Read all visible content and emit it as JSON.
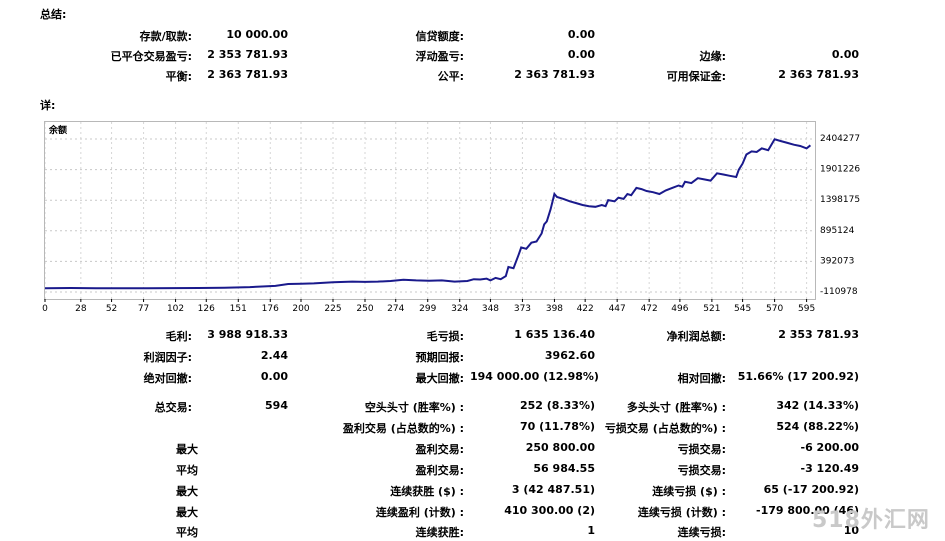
{
  "summary": {
    "title": "总结:",
    "deposit_label": "存款/取款:",
    "deposit_value": "10 000.00",
    "credit_label": "信贷额度:",
    "credit_value": "0.00",
    "closed_pl_label": "已平仓交易盈亏:",
    "closed_pl_value": "2 353 781.93",
    "floating_pl_label": "浮动盈亏:",
    "floating_pl_value": "0.00",
    "margin_label": "边缘:",
    "margin_value": "0.00",
    "balance_label": "平衡:",
    "balance_value": "2 363 781.93",
    "equity_label": "公平:",
    "equity_value": "2 363 781.93",
    "free_margin_label": "可用保证金:",
    "free_margin_value": "2 363 781.93"
  },
  "details": {
    "title": "详:"
  },
  "chart_data": {
    "type": "line",
    "legend": "余额",
    "x_ticks": [
      "0",
      "28",
      "52",
      "77",
      "102",
      "126",
      "151",
      "176",
      "200",
      "225",
      "250",
      "274",
      "299",
      "324",
      "348",
      "373",
      "398",
      "422",
      "447",
      "472",
      "496",
      "521",
      "545",
      "570",
      "595"
    ],
    "y_ticks": [
      "2404277",
      "1901226",
      "1398175",
      "895124",
      "392073",
      "-110978"
    ],
    "ylim": [
      -110978,
      2404277
    ],
    "xlim": [
      0,
      600
    ],
    "grid": true,
    "line_color": "#1a1a8c",
    "series": [
      {
        "x": [
          0,
          20,
          40,
          60,
          80,
          100,
          120,
          140,
          160,
          180,
          190,
          200,
          210,
          225,
          240,
          250,
          260,
          270,
          280,
          290,
          300,
          310,
          320,
          330,
          335,
          340,
          345,
          348,
          352,
          356,
          360,
          362,
          366,
          370,
          372,
          376,
          380,
          384,
          388,
          390,
          392,
          395,
          398,
          400,
          405,
          410,
          415,
          420,
          425,
          430,
          435,
          438,
          440,
          445,
          448,
          452,
          455,
          458,
          462,
          466,
          470,
          475,
          480,
          485,
          490,
          495,
          498,
          500,
          505,
          510,
          515,
          520,
          525,
          530,
          535,
          540,
          542,
          545,
          548,
          552,
          556,
          560,
          565,
          570,
          575,
          580,
          585,
          590,
          595,
          598
        ],
        "y": [
          -50000,
          -45000,
          -48000,
          -50000,
          -48000,
          -47000,
          -45000,
          -40000,
          -30000,
          -10000,
          20000,
          25000,
          30000,
          50000,
          60000,
          55000,
          60000,
          70000,
          90000,
          80000,
          75000,
          80000,
          60000,
          70000,
          100000,
          95000,
          110000,
          80000,
          120000,
          100000,
          150000,
          300000,
          280000,
          500000,
          620000,
          600000,
          700000,
          720000,
          850000,
          1000000,
          1050000,
          1250000,
          1500000,
          1450000,
          1420000,
          1380000,
          1350000,
          1320000,
          1300000,
          1290000,
          1320000,
          1300000,
          1400000,
          1380000,
          1440000,
          1420000,
          1500000,
          1480000,
          1600000,
          1580000,
          1550000,
          1530000,
          1500000,
          1560000,
          1600000,
          1640000,
          1620000,
          1700000,
          1680000,
          1760000,
          1740000,
          1720000,
          1840000,
          1820000,
          1800000,
          1780000,
          1900000,
          2000000,
          2150000,
          2200000,
          2190000,
          2250000,
          2220000,
          2400000,
          2370000,
          2340000,
          2310000,
          2290000,
          2250000,
          2300000
        ]
      }
    ]
  },
  "stats": {
    "gross_profit_label": "毛利:",
    "gross_profit_value": "3 988 918.33",
    "gross_loss_label": "毛亏损:",
    "gross_loss_value": "1 635 136.40",
    "net_profit_label": "净利润总额:",
    "net_profit_value": "2 353 781.93",
    "profit_factor_label": "利润因子:",
    "profit_factor_value": "2.44",
    "expected_payoff_label": "预期回报:",
    "expected_payoff_value": "3962.60",
    "abs_drawdown_label": "绝对回撤:",
    "abs_drawdown_value": "0.00",
    "max_drawdown_label": "最大回撤:",
    "max_drawdown_value": "194 000.00 (12.98%)",
    "rel_drawdown_label": "相对回撤:",
    "rel_drawdown_value": "51.66% (17 200.92)",
    "total_trades_label": "总交易:",
    "total_trades_value": "594",
    "short_label": "空头头寸 (胜率%) :",
    "short_value": "252 (8.33%)",
    "long_label": "多头头寸 (胜率%) :",
    "long_value": "342 (14.33%)",
    "profit_trades_label": "盈利交易 (占总数的%) :",
    "profit_trades_value": "70 (11.78%)",
    "loss_trades_label": "亏损交易 (占总数的%) :",
    "loss_trades_value": "524 (88.22%)",
    "max1_label": "最大",
    "largest_profit_label": "盈利交易:",
    "largest_profit_value": "250 800.00",
    "largest_loss_label": "亏损交易:",
    "largest_loss_value": "-6 200.00",
    "avg1_label": "平均",
    "avg_profit_label": "盈利交易:",
    "avg_profit_value": "56 984.55",
    "avg_loss_label": "亏损交易:",
    "avg_loss_value": "-3 120.49",
    "max2_label": "最大",
    "max_consec_wins_label": "连续获胜 ($) :",
    "max_consec_wins_value": "3 (42 487.51)",
    "max_consec_losses_label": "连续亏损 ($) :",
    "max_consec_losses_value": "65 (-17 200.92)",
    "max3_label": "最大",
    "max_consec_profit_label": "连续盈利 (计数) :",
    "max_consec_profit_value": "410 300.00 (2)",
    "max_consec_loss_label": "连续亏损 (计数) :",
    "max_consec_loss_value": "-179 800.00 (46)",
    "avg2_label": "平均",
    "avg_consec_wins_label": "连续获胜:",
    "avg_consec_wins_value": "1",
    "avg_consec_losses_label": "连续亏损:",
    "avg_consec_losses_value": "10"
  },
  "watermark": "518外汇网"
}
